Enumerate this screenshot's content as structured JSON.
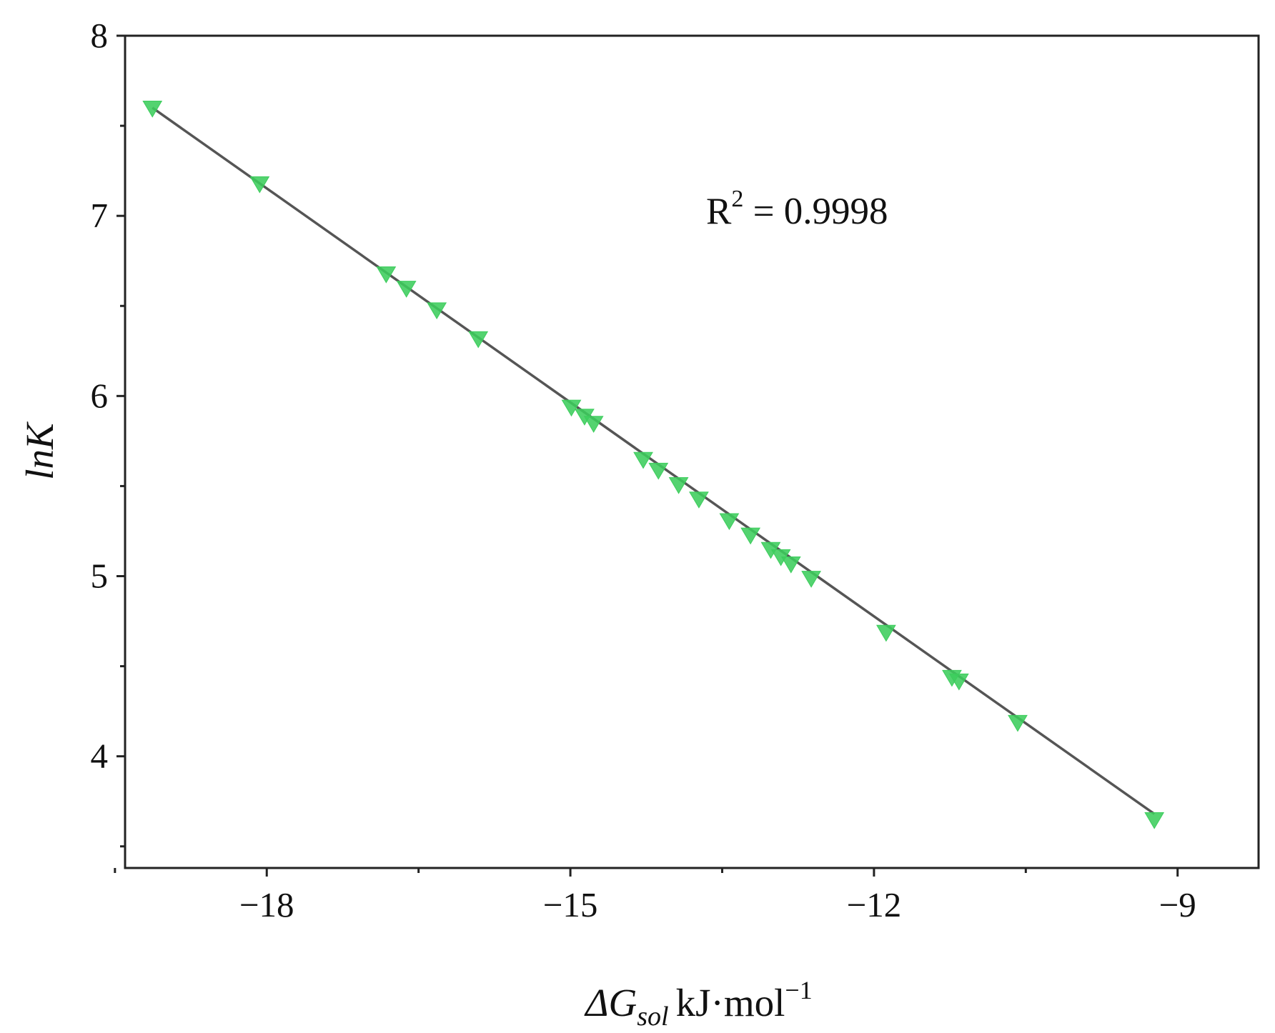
{
  "chart_data": {
    "type": "scatter",
    "title": "",
    "xlabel": {
      "symbol": "ΔG",
      "subscript": "sol",
      "unit_base": "kJ·mol",
      "unit_exponent": "−1"
    },
    "ylabel": "lnK",
    "xlim": [
      -19.4,
      -8.2
    ],
    "ylim": [
      3.38,
      8.0
    ],
    "x_ticks": [
      {
        "value": -18,
        "label": "−18"
      },
      {
        "value": -15,
        "label": "−15"
      },
      {
        "value": -12,
        "label": "−12"
      },
      {
        "value": -9,
        "label": "−9"
      }
    ],
    "x_minor_ticks": [
      -19.5,
      -16.5,
      -13.5,
      -10.5
    ],
    "y_ticks": [
      {
        "value": 4,
        "label": "4"
      },
      {
        "value": 5,
        "label": "5"
      },
      {
        "value": 6,
        "label": "6"
      },
      {
        "value": 7,
        "label": "7"
      },
      {
        "value": 8,
        "label": "8"
      }
    ],
    "y_minor_ticks": [
      3.5,
      4.5,
      5.5,
      6.5,
      7.5
    ],
    "grid": false,
    "legend": "none",
    "annotation": {
      "text": "R",
      "superscript": "2",
      "rest": " = 0.9998"
    },
    "marker": "triangle-down",
    "marker_color": "#3ccd5c",
    "line_color": "#555555",
    "fit_line": {
      "x": [
        -19.13,
        -9.23
      ],
      "y": [
        7.6,
        3.68
      ]
    },
    "series": [
      {
        "points": [
          {
            "x": -19.13,
            "y": 7.6
          },
          {
            "x": -18.07,
            "y": 7.18
          },
          {
            "x": -16.82,
            "y": 6.68
          },
          {
            "x": -16.62,
            "y": 6.6
          },
          {
            "x": -16.32,
            "y": 6.48
          },
          {
            "x": -15.91,
            "y": 6.32
          },
          {
            "x": -14.99,
            "y": 5.94
          },
          {
            "x": -14.86,
            "y": 5.89
          },
          {
            "x": -14.77,
            "y": 5.85
          },
          {
            "x": -14.28,
            "y": 5.65
          },
          {
            "x": -14.13,
            "y": 5.59
          },
          {
            "x": -13.93,
            "y": 5.51
          },
          {
            "x": -13.73,
            "y": 5.43
          },
          {
            "x": -13.43,
            "y": 5.31
          },
          {
            "x": -13.22,
            "y": 5.23
          },
          {
            "x": -13.02,
            "y": 5.15
          },
          {
            "x": -12.92,
            "y": 5.11
          },
          {
            "x": -12.82,
            "y": 5.07
          },
          {
            "x": -12.62,
            "y": 4.99
          },
          {
            "x": -11.88,
            "y": 4.69
          },
          {
            "x": -11.23,
            "y": 4.44
          },
          {
            "x": -11.16,
            "y": 4.42
          },
          {
            "x": -10.58,
            "y": 4.19
          },
          {
            "x": -9.23,
            "y": 3.65
          }
        ]
      }
    ]
  }
}
